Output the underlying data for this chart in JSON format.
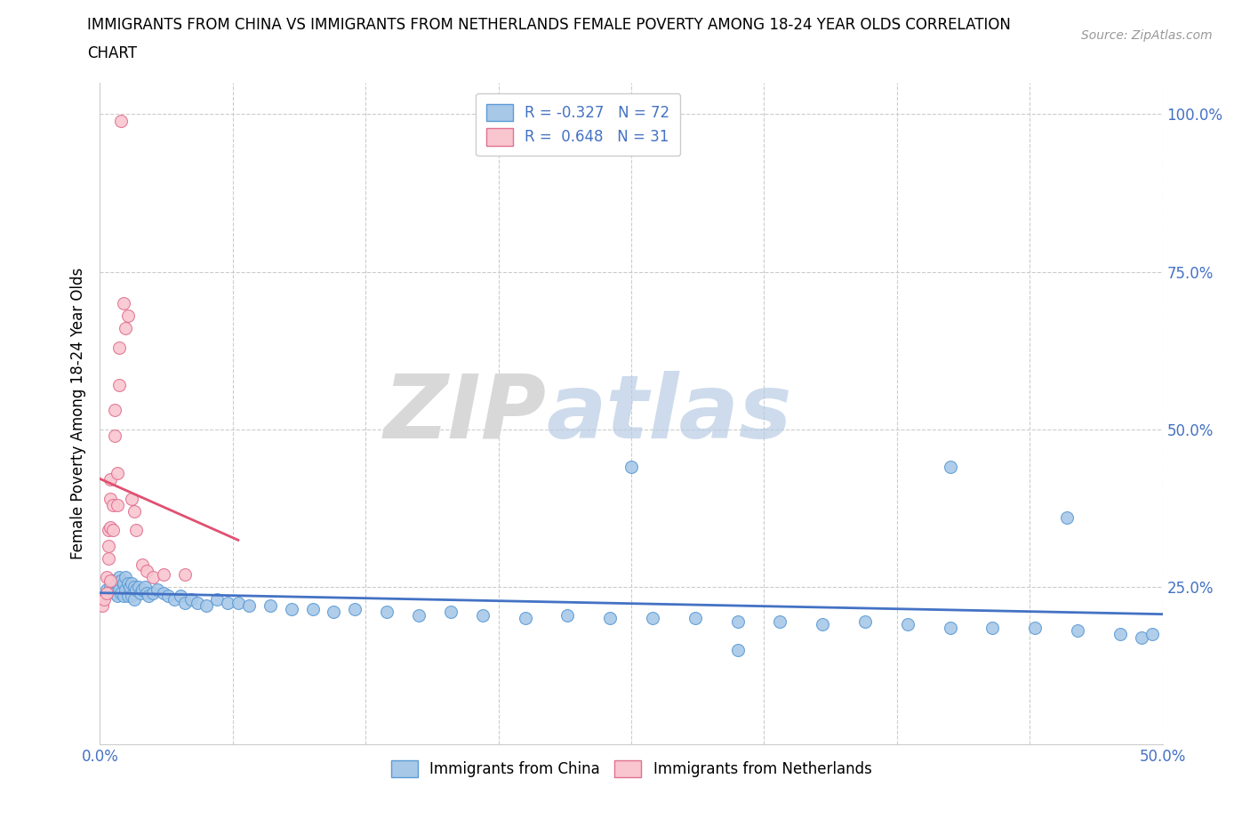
{
  "title_line1": "IMMIGRANTS FROM CHINA VS IMMIGRANTS FROM NETHERLANDS FEMALE POVERTY AMONG 18-24 YEAR OLDS CORRELATION",
  "title_line2": "CHART",
  "source_text": "Source: ZipAtlas.com",
  "ylabel": "Female Poverty Among 18-24 Year Olds",
  "xlim": [
    0.0,
    0.5
  ],
  "ylim": [
    0.0,
    1.05
  ],
  "china_color": "#a8c8e8",
  "china_edge_color": "#5b9bd5",
  "china_line_color": "#4472c4",
  "netherlands_color": "#f9c6d0",
  "netherlands_edge_color": "#e07090",
  "netherlands_line_color": "#e05070",
  "china_R": -0.327,
  "china_N": 72,
  "netherlands_R": 0.648,
  "netherlands_N": 31,
  "legend_label_china": "Immigrants from China",
  "legend_label_netherlands": "Immigrants from Netherlands",
  "watermark_zip": "ZIP",
  "watermark_atlas": "atlas",
  "background_color": "#ffffff",
  "china_x": [
    0.003,
    0.005,
    0.006,
    0.007,
    0.008,
    0.008,
    0.009,
    0.009,
    0.01,
    0.01,
    0.011,
    0.011,
    0.012,
    0.012,
    0.013,
    0.013,
    0.014,
    0.015,
    0.015,
    0.016,
    0.016,
    0.017,
    0.018,
    0.019,
    0.02,
    0.021,
    0.022,
    0.023,
    0.025,
    0.027,
    0.03,
    0.032,
    0.035,
    0.038,
    0.04,
    0.043,
    0.046,
    0.05,
    0.055,
    0.06,
    0.065,
    0.07,
    0.08,
    0.09,
    0.1,
    0.11,
    0.12,
    0.135,
    0.15,
    0.165,
    0.18,
    0.2,
    0.22,
    0.24,
    0.26,
    0.28,
    0.3,
    0.32,
    0.34,
    0.36,
    0.38,
    0.4,
    0.42,
    0.44,
    0.46,
    0.48,
    0.49,
    0.495,
    0.25,
    0.4,
    0.455,
    0.3
  ],
  "china_y": [
    0.245,
    0.25,
    0.26,
    0.24,
    0.255,
    0.235,
    0.265,
    0.245,
    0.26,
    0.24,
    0.255,
    0.235,
    0.265,
    0.245,
    0.255,
    0.235,
    0.25,
    0.255,
    0.235,
    0.25,
    0.23,
    0.245,
    0.25,
    0.24,
    0.245,
    0.25,
    0.24,
    0.235,
    0.24,
    0.245,
    0.24,
    0.235,
    0.23,
    0.235,
    0.225,
    0.23,
    0.225,
    0.22,
    0.23,
    0.225,
    0.225,
    0.22,
    0.22,
    0.215,
    0.215,
    0.21,
    0.215,
    0.21,
    0.205,
    0.21,
    0.205,
    0.2,
    0.205,
    0.2,
    0.2,
    0.2,
    0.195,
    0.195,
    0.19,
    0.195,
    0.19,
    0.185,
    0.185,
    0.185,
    0.18,
    0.175,
    0.17,
    0.175,
    0.44,
    0.44,
    0.36,
    0.15
  ],
  "netherlands_x": [
    0.001,
    0.002,
    0.003,
    0.003,
    0.004,
    0.004,
    0.004,
    0.005,
    0.005,
    0.005,
    0.005,
    0.006,
    0.006,
    0.007,
    0.007,
    0.008,
    0.008,
    0.009,
    0.009,
    0.01,
    0.011,
    0.012,
    0.013,
    0.015,
    0.016,
    0.017,
    0.02,
    0.022,
    0.025,
    0.03,
    0.04
  ],
  "netherlands_y": [
    0.22,
    0.23,
    0.265,
    0.24,
    0.295,
    0.315,
    0.34,
    0.26,
    0.345,
    0.39,
    0.42,
    0.34,
    0.38,
    0.49,
    0.53,
    0.38,
    0.43,
    0.57,
    0.63,
    0.99,
    0.7,
    0.66,
    0.68,
    0.39,
    0.37,
    0.34,
    0.285,
    0.275,
    0.265,
    0.27,
    0.27
  ],
  "neth_line_x": [
    0.0,
    0.065
  ],
  "china_line_x": [
    0.0,
    0.5
  ]
}
